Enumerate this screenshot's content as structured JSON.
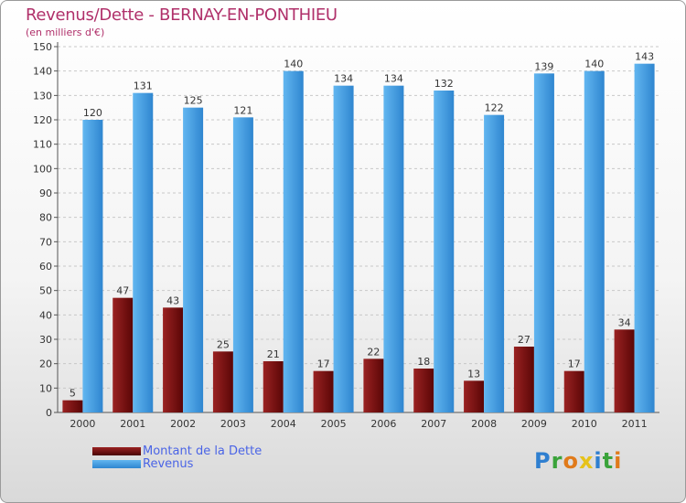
{
  "chart_data": {
    "type": "bar",
    "title": "Revenus/Dette - BERNAY-EN-PONTHIEU",
    "subtitle": "(en milliers d'€)",
    "categories": [
      "2000",
      "2001",
      "2002",
      "2003",
      "2004",
      "2005",
      "2006",
      "2007",
      "2008",
      "2009",
      "2010",
      "2011"
    ],
    "series": [
      {
        "name": "Montant de la Dette",
        "color": "#7a1010",
        "values": [
          5,
          47,
          43,
          25,
          21,
          17,
          22,
          18,
          13,
          27,
          17,
          34
        ]
      },
      {
        "name": "Revenus",
        "color": "#4aa3e6",
        "values": [
          120,
          131,
          125,
          121,
          140,
          134,
          134,
          132,
          122,
          139,
          140,
          143
        ]
      }
    ],
    "ylim": [
      0,
      150
    ],
    "yticks": [
      0,
      10,
      20,
      30,
      40,
      50,
      60,
      70,
      80,
      90,
      100,
      110,
      120,
      130,
      140,
      150
    ],
    "grid": "horizontal-dashed",
    "legend_position": "bottom-left"
  },
  "logo": {
    "text": "Proxiti",
    "letters": [
      {
        "ch": "P",
        "color": "#2f7fd0"
      },
      {
        "ch": "r",
        "color": "#3aa33a"
      },
      {
        "ch": "o",
        "color": "#e07a1a"
      },
      {
        "ch": "x",
        "color": "#e6c21a"
      },
      {
        "ch": "i",
        "color": "#2f7fd0"
      },
      {
        "ch": "t",
        "color": "#3aa33a"
      },
      {
        "ch": "i",
        "color": "#e07a1a"
      }
    ]
  }
}
